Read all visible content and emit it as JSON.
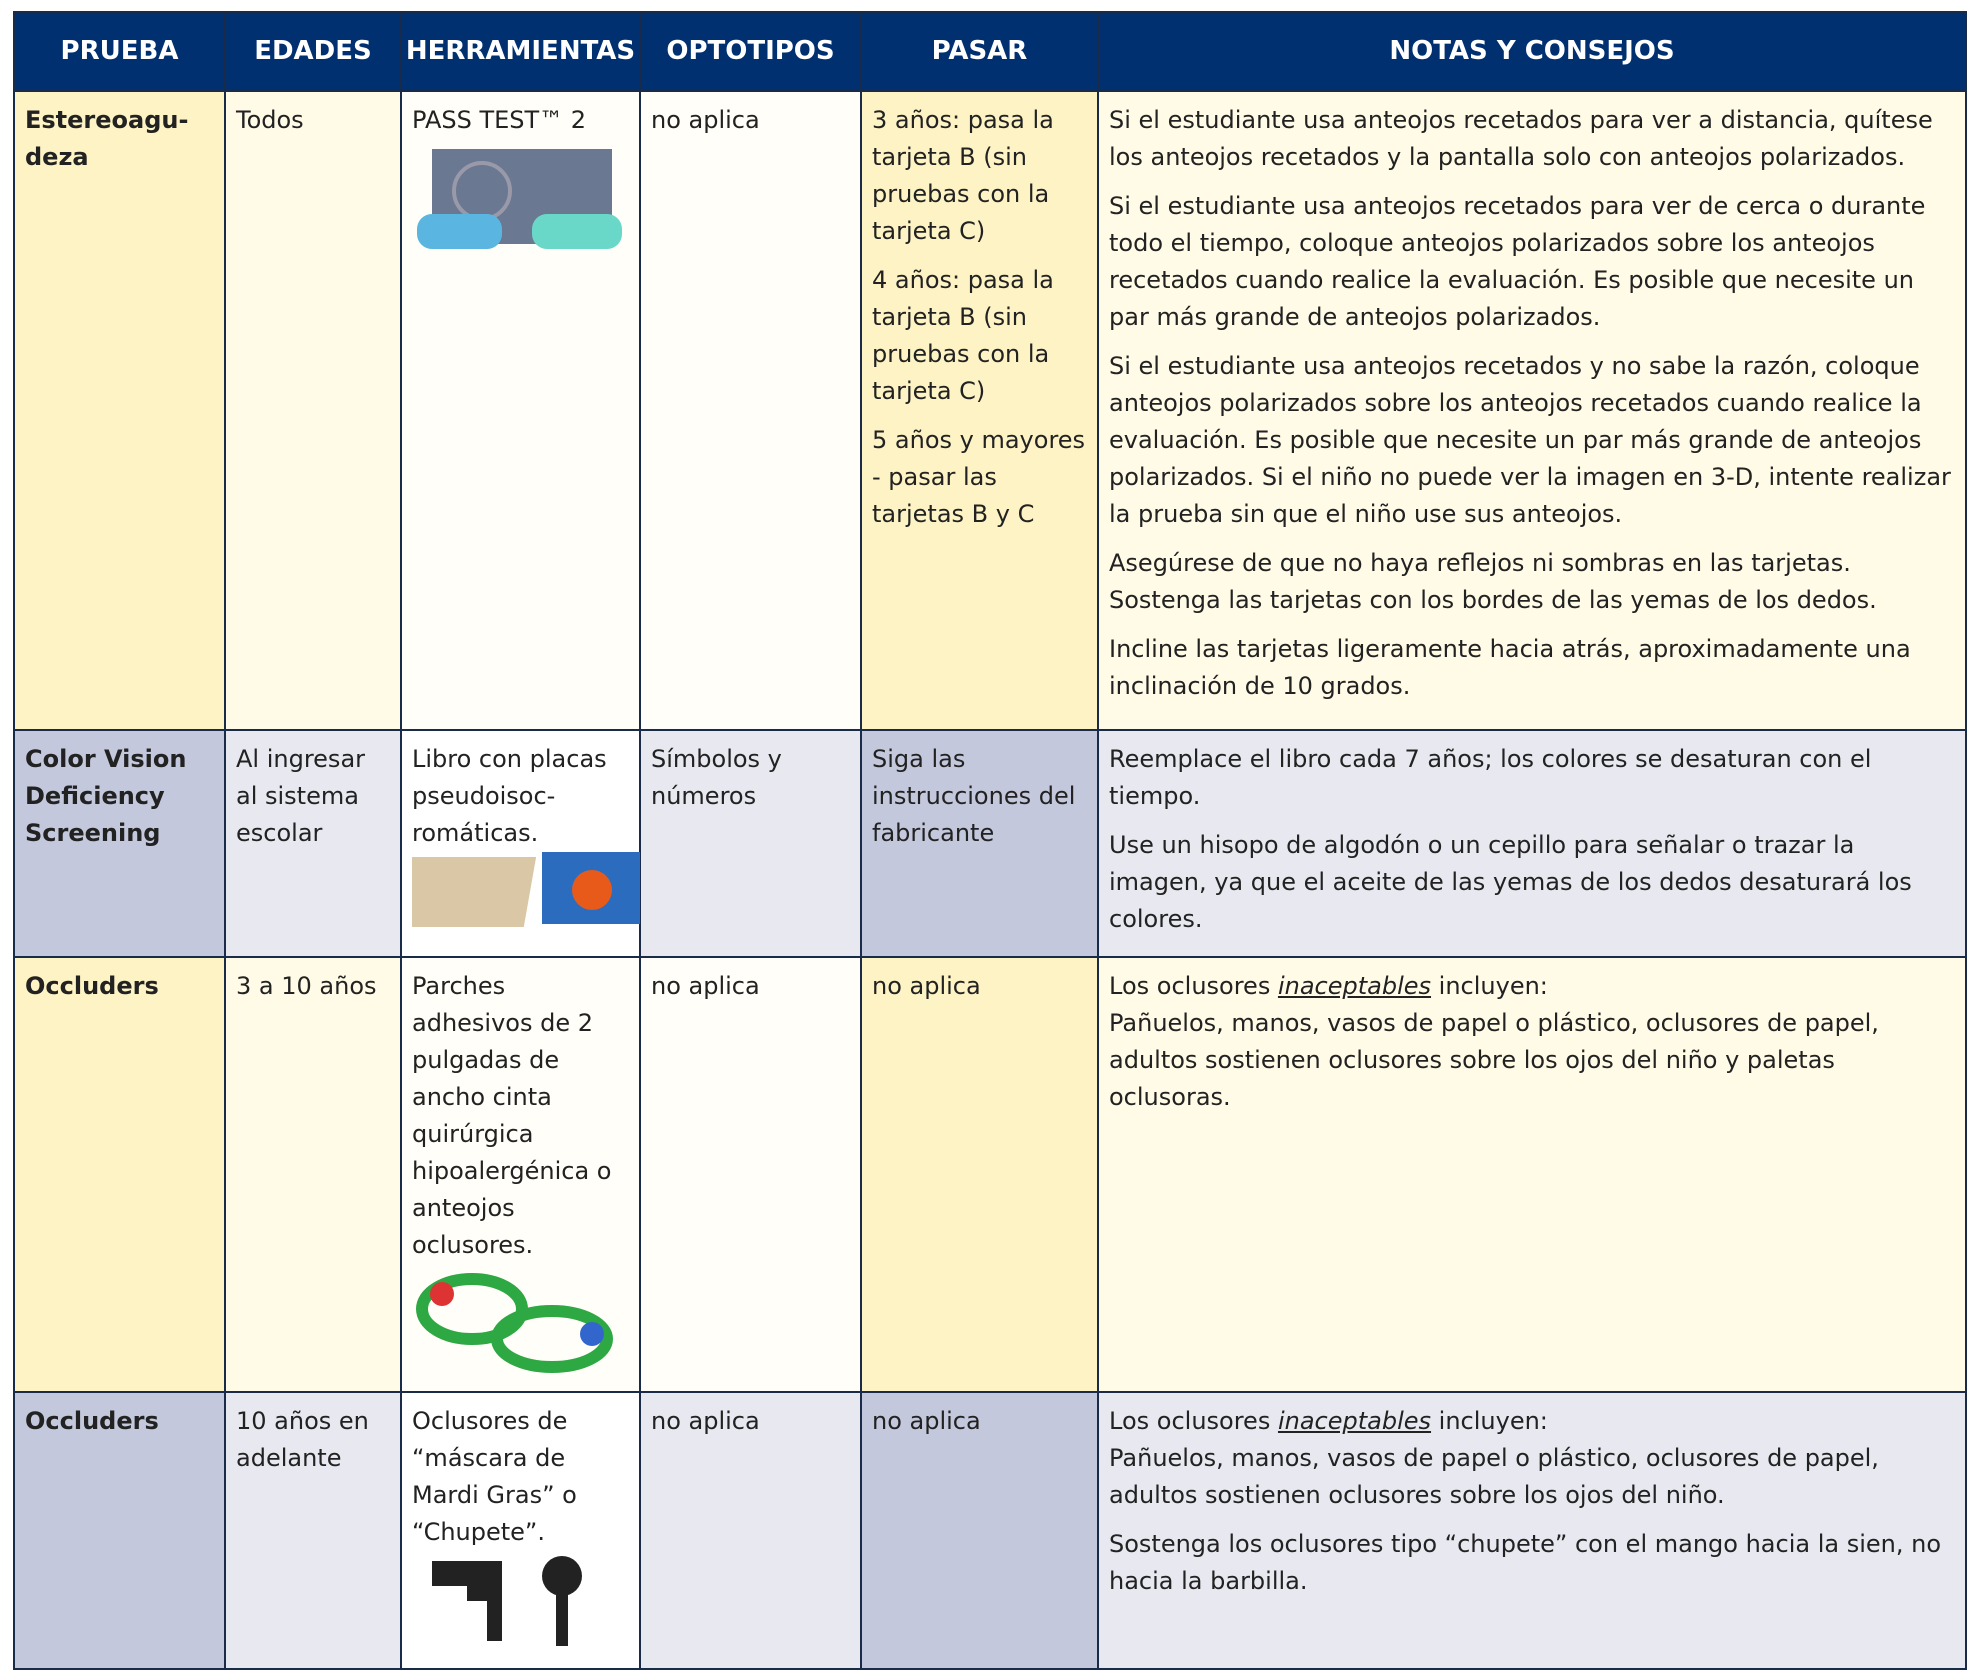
{
  "header": [
    "PRUEBA",
    "EDADES",
    "HERRAMIENTAS",
    "OPTOTIPOS",
    "PASAR",
    "NOTAS Y CONSEJOS"
  ],
  "rows": [
    {
      "test": "Estereoagu-deza",
      "ages": "Todos",
      "tools": "PASS TEST™ 2",
      "optotypes": "no aplica",
      "pass": [
        [
          "3 años: pasa la tarjeta B (sin pruebas con la tarjeta C)"
        ],
        [
          "4 años: pasa la tarjeta B (sin pruebas con la tarjeta C)"
        ],
        [
          "5 años y mayores",
          "- pasar las tarjetas B y C"
        ]
      ],
      "notes": [
        [
          "Si el estudiante usa anteojos recetados para ver a distancia, quítese los anteojos recetados y la pantalla solo con anteojos polarizados."
        ],
        [
          "Si el estudiante usa anteojos recetados para ver de cerca o durante todo el tiempo, coloque anteojos polarizados sobre los anteojos recetados cuando realice la evaluación. Es posible que necesite un par más grande de anteojos polarizados."
        ],
        [
          "Si el estudiante usa anteojos recetados y no sabe la razón, coloque anteojos polarizados sobre los anteojos recetados cuando realice la evaluación. Es posible que necesite un par más grande de anteojos polarizados. Si el niño no puede ver la imagen en 3-D, intente realizar la prueba sin que el niño use sus anteojos."
        ],
        [
          "Asegúrese de que no haya reflejos ni sombras en las tarjetas. Sostenga las tarjetas con los bordes de las yemas de los dedos."
        ],
        [
          "Incline las tarjetas ligeramente hacia atrás, aproximadamente una inclinación de 10 grados."
        ]
      ]
    },
    {
      "test": "Color Vision Deficiency Screening",
      "ages": "Al ingresar al sistema escolar",
      "tools": "Libro con placas pseudoisoc-romáticas.",
      "optotypes": "Símbolos y números",
      "pass": "Siga las instrucciones del fabricante",
      "notes": [
        [
          "Reemplace el libro cada 7 años; los colores se desaturan con el tiempo."
        ],
        [
          "Use un hisopo de algodón o un cepillo para señalar o trazar la imagen, ya que el aceite de las yemas de los dedos desaturará los colores."
        ]
      ]
    },
    {
      "test": "Occluders",
      "ages": "3 a 10 años",
      "tools": "Parches adhesivos de 2 pulgadas de ancho cinta quirúrgica hipoalergénica o anteojos oclusores.",
      "optotypes": "no aplica",
      "pass": "no aplica",
      "notes": [
        [
          {
            "pre": "Los oclusores ",
            "em": "inaceptables",
            "post": " incluyen:"
          },
          "Pañuelos, manos, vasos de papel o plástico, oclusores de papel, adultos sostienen oclusores sobre los ojos del niño y paletas oclusoras."
        ]
      ]
    },
    {
      "test": "Occluders",
      "ages": "10 años en adelante",
      "tools": "Oclusores de “máscara de Mardi Gras” o “Chupete”.",
      "optotypes": "no aplica",
      "pass": "no aplica",
      "notes": [
        [
          {
            "pre": "Los oclusores ",
            "em": "inaceptables",
            "post": " incluyen:"
          },
          "Pañuelos, manos, vasos de papel o plástico, oclusores de papel, adultos sostienen oclusores sobre los ojos del niño."
        ],
        [
          "Sostenga los oclusores tipo “chupete” con el mango hacia la sien, no hacia la barbilla."
        ]
      ]
    }
  ]
}
